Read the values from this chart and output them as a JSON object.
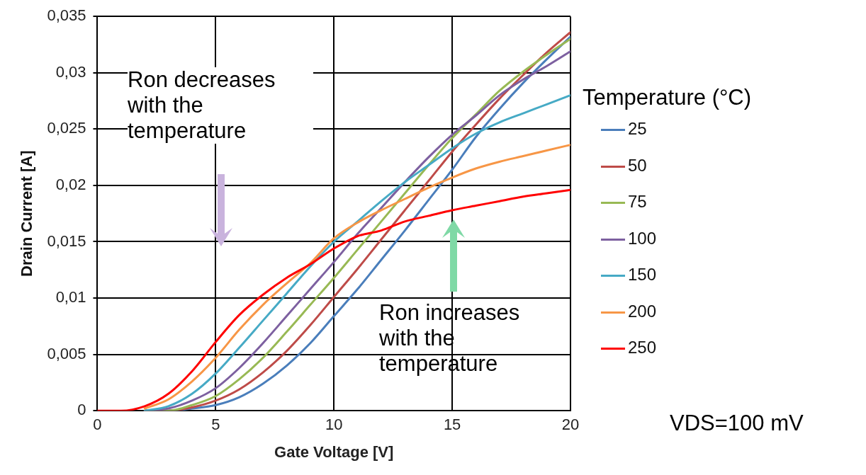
{
  "chart_data": {
    "type": "line",
    "xlabel": "Gate Voltage [V]",
    "ylabel": "Drain Current [A]",
    "legend_title": "Temperature (°C)",
    "legend": "right",
    "grid": true,
    "marker": "none",
    "line_style": "solid",
    "x": [
      0,
      1,
      2,
      3,
      4,
      5,
      6,
      7,
      8,
      9,
      10,
      11,
      12,
      13,
      14,
      15,
      16,
      17,
      18,
      19,
      20
    ],
    "xlim": [
      0,
      20
    ],
    "xticks": [
      0,
      5,
      10,
      15,
      20
    ],
    "ylim": [
      0,
      0.035
    ],
    "yticks": [
      {
        "value": 0,
        "label": "0"
      },
      {
        "value": 0.005,
        "label": "0,005"
      },
      {
        "value": 0.01,
        "label": "0,01"
      },
      {
        "value": 0.015,
        "label": "0,015"
      },
      {
        "value": 0.02,
        "label": "0,02"
      },
      {
        "value": 0.025,
        "label": "0,025"
      },
      {
        "value": 0.03,
        "label": "0,03"
      },
      {
        "value": 0.035,
        "label": "0,035"
      }
    ],
    "series": [
      {
        "name": "25",
        "color": "#4a7ebb",
        "values": [
          null,
          null,
          0,
          0,
          0.0002,
          0.0005,
          0.0012,
          0.0024,
          0.004,
          0.006,
          0.0084,
          0.0108,
          0.0134,
          0.016,
          0.0187,
          0.0214,
          0.0243,
          0.0268,
          0.0291,
          0.0312,
          0.0332
        ]
      },
      {
        "name": "50",
        "color": "#be4b48",
        "values": [
          null,
          null,
          0,
          0,
          0.0003,
          0.0009,
          0.0019,
          0.0034,
          0.0053,
          0.0076,
          0.0101,
          0.0126,
          0.0152,
          0.0178,
          0.0204,
          0.023,
          0.0254,
          0.0277,
          0.0298,
          0.0318,
          0.0336
        ]
      },
      {
        "name": "75",
        "color": "#98b954",
        "values": [
          null,
          null,
          0,
          0,
          0.0005,
          0.0013,
          0.0028,
          0.0047,
          0.007,
          0.0094,
          0.0118,
          0.0143,
          0.0168,
          0.0193,
          0.0218,
          0.0242,
          0.0263,
          0.0284,
          0.0301,
          0.0316,
          0.033
        ]
      },
      {
        "name": "100",
        "color": "#7d60a0",
        "values": [
          null,
          null,
          0,
          0.0002,
          0.0009,
          0.002,
          0.0038,
          0.006,
          0.0084,
          0.0108,
          0.0132,
          0.0157,
          0.018,
          0.0203,
          0.0225,
          0.0245,
          0.0262,
          0.028,
          0.0294,
          0.0306,
          0.0319
        ]
      },
      {
        "name": "150",
        "color": "#46aac5",
        "values": [
          null,
          null,
          0,
          0.0004,
          0.0015,
          0.0033,
          0.0056,
          0.008,
          0.0104,
          0.0128,
          0.015,
          0.0168,
          0.0186,
          0.0203,
          0.0218,
          0.0233,
          0.0246,
          0.0256,
          0.0264,
          0.0272,
          0.028
        ]
      },
      {
        "name": "200",
        "color": "#f79646",
        "values": [
          null,
          null,
          0.0002,
          0.001,
          0.0026,
          0.0047,
          0.0072,
          0.0094,
          0.0113,
          0.0131,
          0.0153,
          0.0167,
          0.0178,
          0.0188,
          0.0198,
          0.0207,
          0.0215,
          0.0221,
          0.0226,
          0.0231,
          0.0236
        ]
      },
      {
        "name": "250",
        "color": "#ff0000",
        "values": [
          0,
          0,
          0.0004,
          0.0015,
          0.0035,
          0.0061,
          0.0085,
          0.0103,
          0.0118,
          0.013,
          0.0144,
          0.0155,
          0.016,
          0.0168,
          0.0173,
          0.0178,
          0.0182,
          0.0186,
          0.019,
          0.0193,
          0.0196
        ]
      }
    ],
    "annotations": [
      "Ron decreases with the temperature",
      "Ron increases with the temperature",
      "VDS=100 mV"
    ]
  }
}
